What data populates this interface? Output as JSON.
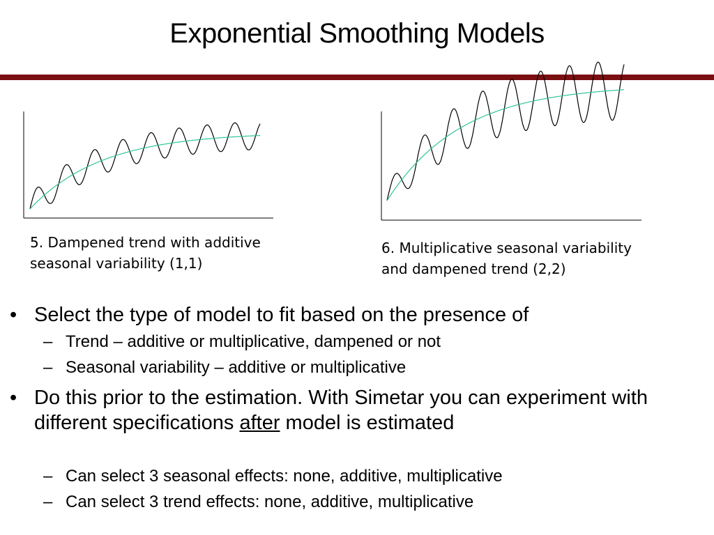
{
  "title": "Exponential Smoothing Models",
  "colors": {
    "title_rule": "#7a0f12",
    "series_line": "#000000",
    "trend_line": "#2fc49a"
  },
  "captions": {
    "chart5_line1": "5. Dampened trend with additive",
    "chart5_line2": "seasonal variability (1,1)",
    "chart6_line1": "6. Multiplicative seasonal variability",
    "chart6_line2": "and dampened trend (2,2)"
  },
  "bullets": {
    "b1": "Select the type of model to fit based on the presence of",
    "b1_sub1": "Trend – additive or multiplicative, dampened or not",
    "b1_sub2": "Seasonal variability – additive or multiplicative",
    "b2_part1": "Do this prior to the estimation.  With Simetar you can experiment with different specifications ",
    "b2_underlined": "after",
    "b2_part2": " model is estimated",
    "b2_sub1": "Can select 3 seasonal effects: none, additive, multiplicative",
    "b2_sub2": "Can select 3 trend effects: none, additive, multiplicative",
    "bullet_glyph": "•",
    "dash_glyph": "–"
  },
  "chart_data": [
    {
      "type": "line",
      "title": "",
      "xlabel": "",
      "ylabel": "",
      "grid": false,
      "description_series": [
        {
          "role": "seasonal series",
          "amplitude": "additive (constant)",
          "trend": "dampened"
        },
        {
          "role": "trend line",
          "shape": "dampened rising curve"
        }
      ],
      "cycles": 8
    },
    {
      "type": "line",
      "title": "",
      "xlabel": "",
      "ylabel": "",
      "grid": false,
      "description_series": [
        {
          "role": "seasonal series",
          "amplitude": "multiplicative (scaled with level)",
          "trend": "dampened"
        },
        {
          "role": "trend line",
          "shape": "dampened rising curve"
        }
      ],
      "cycles": 8
    }
  ]
}
